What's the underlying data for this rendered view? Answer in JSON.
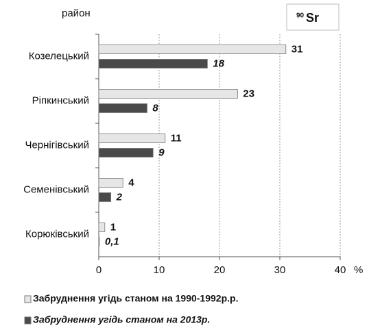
{
  "chart_data": {
    "type": "bar",
    "orientation": "horizontal",
    "y_axis_label": "район",
    "x_axis_label": "%",
    "annotation": {
      "mass": "90",
      "symbol": "Sr"
    },
    "categories": [
      "Козелецький",
      "Ріпкинський",
      "Чернігівський",
      "Семенівський",
      "Корюківський"
    ],
    "series": [
      {
        "name": "Забруднення угідь станом на 1990-1992р.р.",
        "color": "#e6e6e6",
        "values": [
          31,
          23,
          11,
          4,
          1
        ]
      },
      {
        "name": "Забруднення угідь станом на 2013р.",
        "color": "#4a4a4a",
        "values": [
          18,
          8,
          9,
          2,
          0.1
        ],
        "value_labels": [
          "18",
          "8",
          "9",
          "2",
          "0,1"
        ]
      }
    ],
    "xlim": [
      0,
      40
    ],
    "xticks": [
      0,
      10,
      20,
      30,
      40
    ],
    "grid": true
  }
}
